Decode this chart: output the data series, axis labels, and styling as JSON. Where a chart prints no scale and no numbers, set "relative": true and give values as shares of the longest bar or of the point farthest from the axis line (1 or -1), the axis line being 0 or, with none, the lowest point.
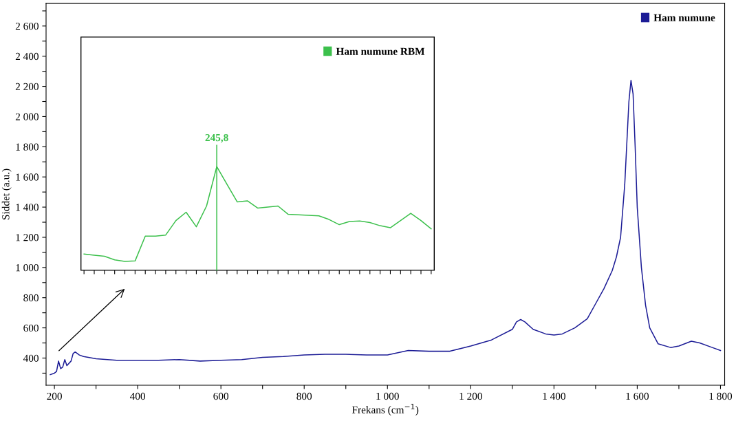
{
  "chart_data": [
    {
      "type": "line",
      "xlabel": "Frekans (cm$^{−1}$)",
      "ylabel": "Siddet (a.u.)",
      "legend": "top right",
      "grid": false,
      "xlim": [
        180,
        1810
      ],
      "ylim": [
        220,
        2750
      ],
      "xticks": [
        {
          "value": 200,
          "label": "200"
        },
        {
          "value": 300,
          "label": null
        },
        {
          "value": 400,
          "label": "400"
        },
        {
          "value": 500,
          "label": null
        },
        {
          "value": 600,
          "label": "600"
        },
        {
          "value": 700,
          "label": null
        },
        {
          "value": 800,
          "label": "800"
        },
        {
          "value": 900,
          "label": null
        },
        {
          "value": 1000,
          "label": "1 000"
        },
        {
          "value": 1100,
          "label": null
        },
        {
          "value": 1200,
          "label": "1 200"
        },
        {
          "value": 1300,
          "label": null
        },
        {
          "value": 1400,
          "label": "1 400"
        },
        {
          "value": 1500,
          "label": null
        },
        {
          "value": 1600,
          "label": "1 600"
        },
        {
          "value": 1700,
          "label": null
        },
        {
          "value": 1800,
          "label": "1 800"
        }
      ],
      "yticks": [
        {
          "value": 300,
          "label": null
        },
        {
          "value": 400,
          "label": "400"
        },
        {
          "value": 500,
          "label": null
        },
        {
          "value": 600,
          "label": "600"
        },
        {
          "value": 700,
          "label": null
        },
        {
          "value": 800,
          "label": "800"
        },
        {
          "value": 900,
          "label": null
        },
        {
          "value": 1000,
          "label": "1 000"
        },
        {
          "value": 1100,
          "label": null
        },
        {
          "value": 1200,
          "label": "1 200"
        },
        {
          "value": 1300,
          "label": null
        },
        {
          "value": 1400,
          "label": "1 400"
        },
        {
          "value": 1500,
          "label": null
        },
        {
          "value": 1600,
          "label": "1 600"
        },
        {
          "value": 1700,
          "label": null
        },
        {
          "value": 1800,
          "label": "1 800"
        },
        {
          "value": 1900,
          "label": null
        },
        {
          "value": 2000,
          "label": "2 000"
        },
        {
          "value": 2100,
          "label": null
        },
        {
          "value": 2200,
          "label": "2 200"
        },
        {
          "value": 2300,
          "label": null
        },
        {
          "value": 2400,
          "label": "2 400"
        },
        {
          "value": 2500,
          "label": null
        },
        {
          "value": 2600,
          "label": "2 600"
        },
        {
          "value": 2700,
          "label": null
        }
      ],
      "series": [
        {
          "name": "Ham numune",
          "color": "#1c1c96",
          "x": [
            190,
            200,
            205,
            210,
            215,
            220,
            225,
            230,
            240,
            245,
            250,
            260,
            270,
            300,
            350,
            400,
            450,
            500,
            550,
            600,
            650,
            700,
            750,
            800,
            850,
            900,
            950,
            1000,
            1050,
            1100,
            1150,
            1200,
            1250,
            1300,
            1310,
            1320,
            1330,
            1350,
            1380,
            1400,
            1420,
            1450,
            1480,
            1500,
            1520,
            1540,
            1550,
            1560,
            1570,
            1580,
            1585,
            1590,
            1595,
            1600,
            1610,
            1620,
            1630,
            1650,
            1680,
            1700,
            1730,
            1750,
            1780,
            1800
          ],
          "values": [
            290,
            300,
            310,
            380,
            330,
            340,
            390,
            350,
            380,
            430,
            440,
            420,
            410,
            395,
            385,
            385,
            385,
            390,
            380,
            385,
            390,
            405,
            410,
            420,
            425,
            425,
            420,
            420,
            450,
            445,
            445,
            480,
            520,
            590,
            640,
            655,
            640,
            590,
            560,
            553,
            560,
            600,
            660,
            760,
            860,
            980,
            1070,
            1200,
            1550,
            2100,
            2240,
            2150,
            1800,
            1400,
            1000,
            750,
            600,
            495,
            470,
            480,
            512,
            500,
            470,
            450
          ]
        }
      ]
    },
    {
      "type": "line",
      "relative": true,
      "legend": "top right",
      "grid": false,
      "categories": [
        null,
        null,
        null,
        null,
        null,
        null,
        null,
        null,
        null,
        null,
        null,
        null,
        null,
        null,
        null,
        null,
        null,
        null,
        null,
        null,
        null,
        null,
        null,
        null,
        null,
        null,
        null,
        null,
        null,
        null,
        null,
        null,
        null,
        null,
        null
      ],
      "annotations": [
        {
          "text": "245,8",
          "y": 1.0
        }
      ],
      "series": [
        {
          "name": "Ham numune RBM",
          "color": "#3cc04c",
          "values": [
            0.157,
            0.145,
            0.135,
            0.1,
            0.085,
            0.09,
            0.33,
            0.33,
            0.34,
            0.48,
            0.56,
            0.42,
            0.62,
            1.0,
            0.83,
            0.66,
            0.67,
            0.6,
            0.61,
            0.62,
            0.54,
            0.535,
            0.53,
            0.525,
            0.49,
            0.44,
            0.47,
            0.475,
            0.46,
            0.43,
            0.41,
            0.48,
            0.55,
            0.48,
            0.4
          ]
        }
      ]
    }
  ]
}
